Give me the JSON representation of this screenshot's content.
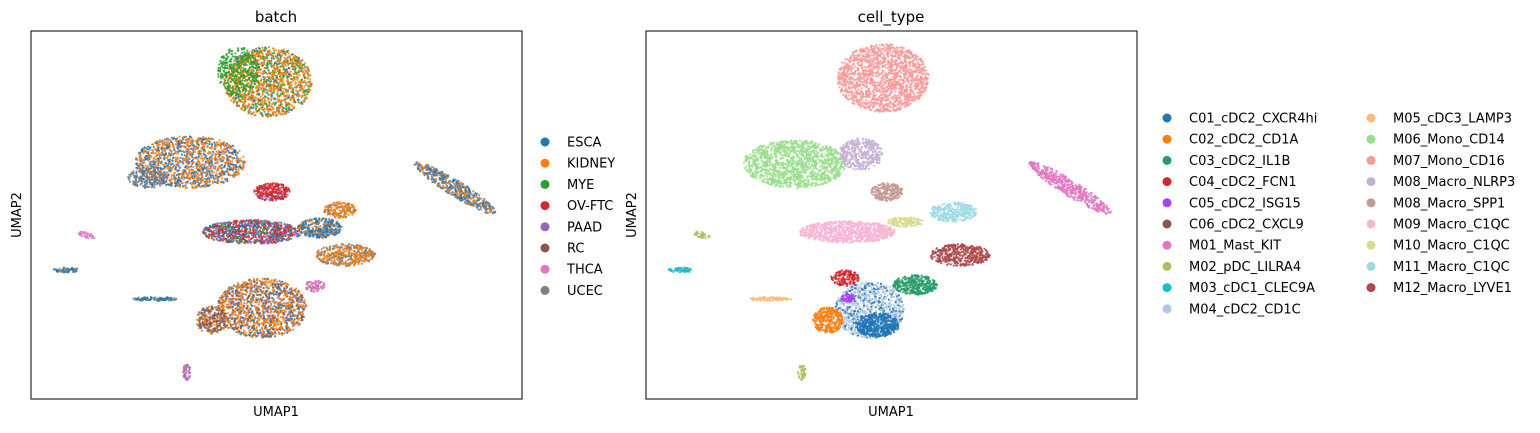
{
  "chart_data": [
    {
      "type": "scatter",
      "title": "batch",
      "xlabel": "UMAP1",
      "ylabel": "UMAP2",
      "grid": false,
      "xticks": false,
      "yticks": false,
      "legend_placement": "right",
      "legend": [
        {
          "label": "ESCA",
          "color": "#1f77b4"
        },
        {
          "label": "KIDNEY",
          "color": "#ff7f0e"
        },
        {
          "label": "MYE",
          "color": "#2ca02c"
        },
        {
          "label": "OV-FTC",
          "color": "#d62728"
        },
        {
          "label": "PAAD",
          "color": "#9467bd"
        },
        {
          "label": "RC",
          "color": "#8c564b"
        },
        {
          "label": "THCA",
          "color": "#e377c2"
        },
        {
          "label": "UCEC",
          "color": "#7f7f7f"
        }
      ]
    },
    {
      "type": "scatter",
      "title": "cell_type",
      "xlabel": "UMAP1",
      "ylabel": "UMAP2",
      "grid": false,
      "xticks": false,
      "yticks": false,
      "legend_placement": "right",
      "legend": [
        {
          "label": "C01_cDC2_CXCR4hi",
          "color": "#1f77b4"
        },
        {
          "label": "C02_cDC2_CD1A",
          "color": "#ff7f0e"
        },
        {
          "label": "C03_cDC2_IL1B",
          "color": "#279e68"
        },
        {
          "label": "C04_cDC2_FCN1",
          "color": "#d62728"
        },
        {
          "label": "C05_cDC2_ISG15",
          "color": "#aa40fc"
        },
        {
          "label": "C06_cDC2_CXCL9",
          "color": "#8c564b"
        },
        {
          "label": "M01_Mast_KIT",
          "color": "#e377c2"
        },
        {
          "label": "M02_pDC_LILRA4",
          "color": "#b5bd61"
        },
        {
          "label": "M03_cDC1_CLEC9A",
          "color": "#17becf"
        },
        {
          "label": "M04_cDC2_CD1C",
          "color": "#aec7e8"
        },
        {
          "label": "M05_cDC3_LAMP3",
          "color": "#ffbb78"
        },
        {
          "label": "M06_Mono_CD14",
          "color": "#98df8a"
        },
        {
          "label": "M07_Mono_CD16",
          "color": "#ff9896"
        },
        {
          "label": "M08_Macro_NLRP3",
          "color": "#c5b0d5"
        },
        {
          "label": "M08_Macro_SPP1",
          "color": "#c49c94"
        },
        {
          "label": "M09_Macro_C1QC",
          "color": "#f7b6d2"
        },
        {
          "label": "M10_Macro_C1QC",
          "color": "#dbdb8d"
        },
        {
          "label": "M11_Macro_C1QC",
          "color": "#9edae5"
        },
        {
          "label": "M12_Macro_LYVE1",
          "color": "#ad494a"
        }
      ]
    }
  ]
}
